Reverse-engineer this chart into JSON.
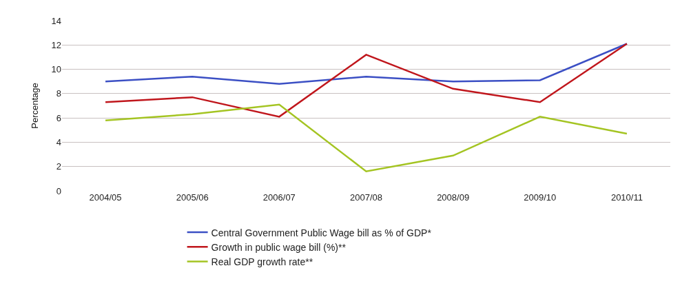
{
  "chart_data": {
    "type": "line",
    "ylabel": "Percentage",
    "categories": [
      "2004/05",
      "2005/06",
      "2006/07",
      "2007/08",
      "2008/09",
      "2009/10",
      "2010/11"
    ],
    "series": [
      {
        "name": "Central Government Public Wage bill as % of GDP*",
        "color": "#3b4fc4",
        "values": [
          9.0,
          9.4,
          8.8,
          9.4,
          9.0,
          9.1,
          12.1
        ]
      },
      {
        "name": "Growth in public wage bill (%)**",
        "color": "#c0161c",
        "values": [
          7.3,
          7.7,
          6.1,
          11.2,
          8.4,
          7.3,
          12.1
        ]
      },
      {
        "name": "Real GDP growth rate**",
        "color": "#a4c422",
        "values": [
          5.8,
          6.3,
          7.1,
          1.6,
          2.9,
          6.1,
          4.7
        ]
      }
    ],
    "ylim": [
      0,
      14
    ],
    "yticks": [
      0,
      2,
      4,
      6,
      8,
      10,
      12,
      14
    ],
    "grid": "y",
    "legend": "bottom",
    "marker": "none",
    "line_style": "solid"
  }
}
